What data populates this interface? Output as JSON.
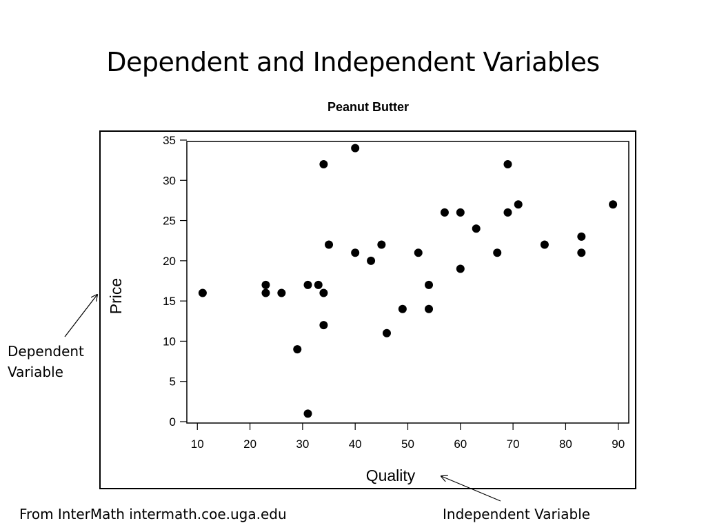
{
  "slide": {
    "title": "Dependent and Independent Variables",
    "dependent_note": [
      "Dependent",
      "Variable"
    ],
    "independent_note": "Independent Variable",
    "source": "From InterMath intermath.coe.uga.edu"
  },
  "chart_data": {
    "type": "scatter",
    "title": "Peanut Butter",
    "xlabel": "Quality",
    "ylabel": "Price",
    "xlim": [
      8,
      92
    ],
    "ylim": [
      0,
      35
    ],
    "xticks": [
      10,
      20,
      30,
      40,
      50,
      60,
      70,
      80,
      90
    ],
    "yticks": [
      0,
      5,
      10,
      15,
      20,
      25,
      30,
      35
    ],
    "grid": false,
    "point_color": "#000000",
    "points": [
      {
        "x": 11,
        "y": 16
      },
      {
        "x": 23,
        "y": 17
      },
      {
        "x": 23,
        "y": 16
      },
      {
        "x": 26,
        "y": 16
      },
      {
        "x": 29,
        "y": 9
      },
      {
        "x": 31,
        "y": 17
      },
      {
        "x": 31,
        "y": 1
      },
      {
        "x": 33,
        "y": 17
      },
      {
        "x": 34,
        "y": 32
      },
      {
        "x": 34,
        "y": 16
      },
      {
        "x": 34,
        "y": 12
      },
      {
        "x": 35,
        "y": 22
      },
      {
        "x": 40,
        "y": 34
      },
      {
        "x": 40,
        "y": 21
      },
      {
        "x": 43,
        "y": 20
      },
      {
        "x": 45,
        "y": 22
      },
      {
        "x": 46,
        "y": 11
      },
      {
        "x": 49,
        "y": 14
      },
      {
        "x": 52,
        "y": 21
      },
      {
        "x": 54,
        "y": 17
      },
      {
        "x": 54,
        "y": 14
      },
      {
        "x": 57,
        "y": 26
      },
      {
        "x": 60,
        "y": 26
      },
      {
        "x": 60,
        "y": 19
      },
      {
        "x": 63,
        "y": 24
      },
      {
        "x": 67,
        "y": 21
      },
      {
        "x": 69,
        "y": 32
      },
      {
        "x": 69,
        "y": 26
      },
      {
        "x": 71,
        "y": 27
      },
      {
        "x": 76,
        "y": 22
      },
      {
        "x": 83,
        "y": 23
      },
      {
        "x": 83,
        "y": 21
      },
      {
        "x": 89,
        "y": 27
      }
    ]
  }
}
